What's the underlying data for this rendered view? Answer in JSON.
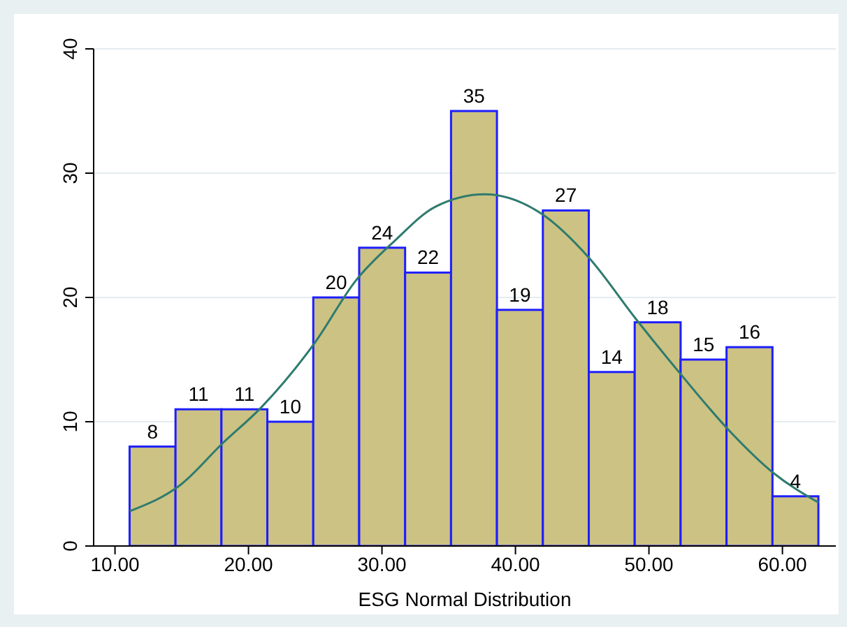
{
  "chart_data": {
    "type": "histogram",
    "xlabel": "ESG Normal Distribution",
    "bins": [
      11.1,
      14.54,
      17.98,
      21.42,
      24.86,
      28.3,
      31.74,
      35.18,
      38.62,
      42.06,
      45.5,
      48.94,
      52.38,
      55.82,
      59.26,
      62.7
    ],
    "series": [
      {
        "color": "#ccc283",
        "values": [
          8,
          11,
          11,
          10,
          20,
          24,
          22,
          35,
          19,
          27,
          14,
          18,
          15,
          16,
          4
        ],
        "value_labels": [
          "8",
          "11",
          "11",
          "10",
          "20",
          "24",
          "22",
          "35",
          "19",
          "27",
          "14",
          "18",
          "15",
          "16",
          "4"
        ]
      },
      {
        "type": "line",
        "color": "#2e7b6e",
        "x": [
          11.1,
          15,
          18,
          21,
          25,
          28,
          31,
          34,
          37.7,
          42,
          45.5,
          49,
          52.4,
          56,
          59.3,
          62.7
        ],
        "values": [
          2.8,
          5,
          8.2,
          11.2,
          16.4,
          21.3,
          24.6,
          27.3,
          28.3,
          26.7,
          23.2,
          18.3,
          13.8,
          9.3,
          5.9,
          3.5
        ]
      }
    ],
    "grid": "y",
    "marker": "none",
    "xlim": [
      8.4,
      64
    ],
    "xticks": [
      {
        "value": 10,
        "label": "10.00"
      },
      {
        "value": 20,
        "label": "20.00"
      },
      {
        "value": 30,
        "label": "30.00"
      },
      {
        "value": 40,
        "label": "40.00"
      },
      {
        "value": 50,
        "label": "50.00"
      },
      {
        "value": 60,
        "label": "60.00"
      }
    ],
    "ylim": [
      0,
      40
    ],
    "yticks": [
      0,
      10,
      20,
      30,
      40
    ]
  }
}
